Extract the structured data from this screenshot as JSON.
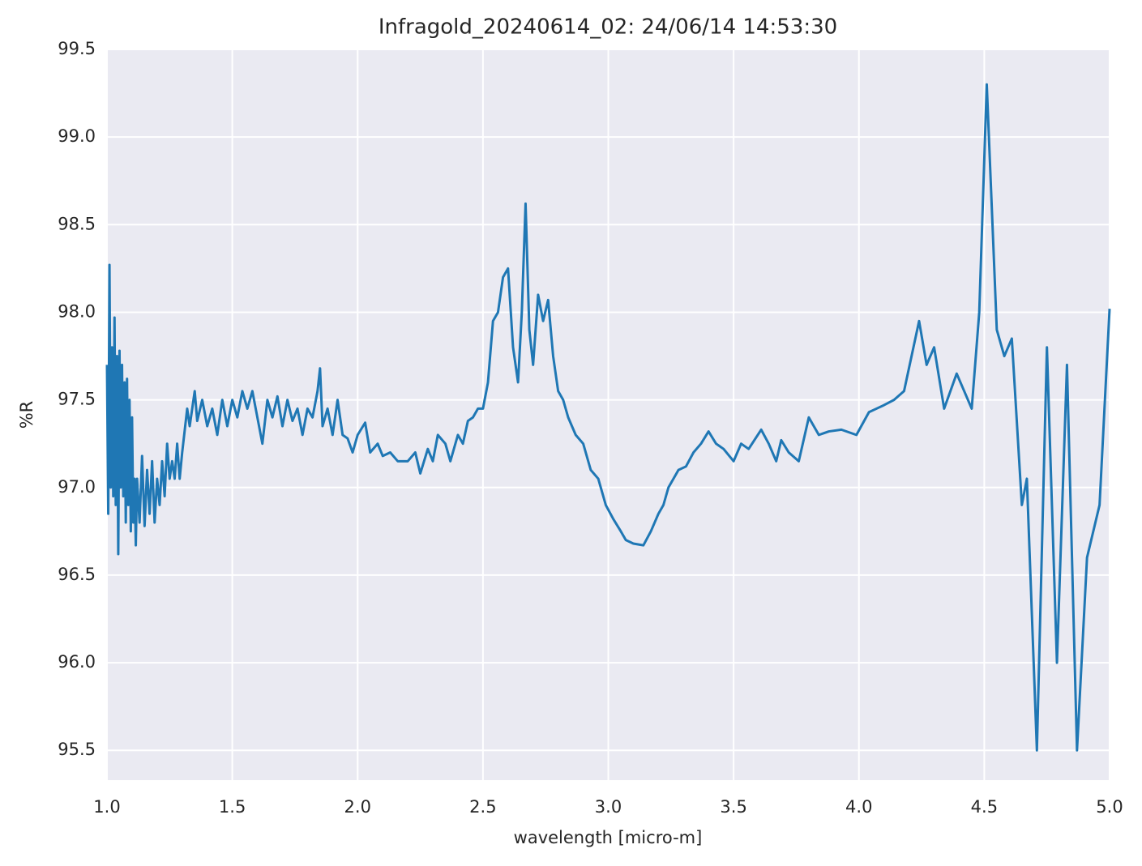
{
  "chart_data": {
    "type": "line",
    "title": "Infragold_20240614_02:  24/06/14 14:53:30",
    "x_label": "wavelength [micro-m]",
    "y_label": "%R",
    "color": "#1f77b4",
    "grid": true,
    "xlim": [
      1.0,
      5.0
    ],
    "ylim": [
      95.33,
      99.5
    ],
    "xticks": [
      {
        "value": 1,
        "label": "1.0"
      },
      1.5,
      {
        "value": 2,
        "label": "2.0"
      },
      2.5,
      {
        "value": 3,
        "label": "3.0"
      },
      3.5,
      {
        "value": 4,
        "label": "4.0"
      },
      4.5,
      {
        "value": 5,
        "label": "5.0"
      }
    ],
    "yticks": [
      95.5,
      {
        "value": 96,
        "label": "96.0"
      },
      96.5,
      {
        "value": 97,
        "label": "97.0"
      },
      97.5,
      {
        "value": 98,
        "label": "98.0"
      },
      98.5,
      {
        "value": 99,
        "label": "99.0"
      },
      99.5
    ],
    "x": [
      1.0,
      1.005,
      1.01,
      1.015,
      1.02,
      1.025,
      1.03,
      1.035,
      1.04,
      1.045,
      1.05,
      1.055,
      1.06,
      1.065,
      1.07,
      1.075,
      1.08,
      1.085,
      1.09,
      1.095,
      1.1,
      1.105,
      1.11,
      1.115,
      1.12,
      1.13,
      1.14,
      1.15,
      1.16,
      1.17,
      1.18,
      1.19,
      1.2,
      1.21,
      1.22,
      1.23,
      1.24,
      1.25,
      1.26,
      1.27,
      1.28,
      1.29,
      1.3,
      1.32,
      1.33,
      1.35,
      1.36,
      1.38,
      1.4,
      1.42,
      1.44,
      1.46,
      1.48,
      1.5,
      1.52,
      1.54,
      1.56,
      1.58,
      1.6,
      1.62,
      1.64,
      1.66,
      1.68,
      1.7,
      1.72,
      1.74,
      1.76,
      1.78,
      1.8,
      1.82,
      1.84,
      1.85,
      1.86,
      1.88,
      1.9,
      1.92,
      1.94,
      1.96,
      1.98,
      2.0,
      2.03,
      2.05,
      2.08,
      2.1,
      2.13,
      2.16,
      2.2,
      2.23,
      2.25,
      2.28,
      2.3,
      2.32,
      2.35,
      2.37,
      2.4,
      2.42,
      2.44,
      2.46,
      2.48,
      2.5,
      2.52,
      2.54,
      2.56,
      2.58,
      2.6,
      2.62,
      2.64,
      2.655,
      2.67,
      2.685,
      2.7,
      2.72,
      2.74,
      2.76,
      2.78,
      2.8,
      2.82,
      2.84,
      2.87,
      2.9,
      2.93,
      2.96,
      2.99,
      3.02,
      3.05,
      3.07,
      3.1,
      3.14,
      3.17,
      3.2,
      3.22,
      3.24,
      3.26,
      3.28,
      3.31,
      3.34,
      3.37,
      3.4,
      3.43,
      3.46,
      3.5,
      3.53,
      3.56,
      3.61,
      3.64,
      3.67,
      3.69,
      3.72,
      3.76,
      3.8,
      3.84,
      3.88,
      3.93,
      3.99,
      4.04,
      4.07,
      4.1,
      4.14,
      4.18,
      4.24,
      4.27,
      4.3,
      4.34,
      4.39,
      4.45,
      4.48,
      4.51,
      4.55,
      4.58,
      4.61,
      4.65,
      4.67,
      4.71,
      4.75,
      4.79,
      4.83,
      4.87,
      4.91,
      4.96,
      5.0
    ],
    "values": [
      97.7,
      96.85,
      98.27,
      97.0,
      97.8,
      96.95,
      97.97,
      96.9,
      97.75,
      96.62,
      97.78,
      97.0,
      97.7,
      96.95,
      97.6,
      96.8,
      97.62,
      96.9,
      97.5,
      96.75,
      97.4,
      96.8,
      97.05,
      96.67,
      97.05,
      96.8,
      97.18,
      96.78,
      97.1,
      96.85,
      97.15,
      96.8,
      97.05,
      96.9,
      97.15,
      96.95,
      97.25,
      97.05,
      97.15,
      97.05,
      97.25,
      97.05,
      97.2,
      97.45,
      97.35,
      97.55,
      97.38,
      97.5,
      97.35,
      97.45,
      97.3,
      97.5,
      97.35,
      97.5,
      97.4,
      97.55,
      97.45,
      97.55,
      97.4,
      97.25,
      97.5,
      97.4,
      97.52,
      97.35,
      97.5,
      97.38,
      97.45,
      97.3,
      97.45,
      97.4,
      97.55,
      97.68,
      97.35,
      97.45,
      97.3,
      97.5,
      97.3,
      97.28,
      97.2,
      97.3,
      97.37,
      97.2,
      97.25,
      97.18,
      97.2,
      97.15,
      97.15,
      97.2,
      97.08,
      97.22,
      97.15,
      97.3,
      97.25,
      97.15,
      97.3,
      97.25,
      97.38,
      97.4,
      97.45,
      97.45,
      97.6,
      97.95,
      98.0,
      98.2,
      98.25,
      97.8,
      97.6,
      98.0,
      98.62,
      97.9,
      97.7,
      98.1,
      97.95,
      98.07,
      97.75,
      97.55,
      97.5,
      97.4,
      97.3,
      97.25,
      97.1,
      97.05,
      96.9,
      96.82,
      96.75,
      96.7,
      96.68,
      96.67,
      96.75,
      96.85,
      96.9,
      97.0,
      97.05,
      97.1,
      97.12,
      97.2,
      97.25,
      97.32,
      97.25,
      97.22,
      97.15,
      97.25,
      97.22,
      97.33,
      97.25,
      97.15,
      97.27,
      97.2,
      97.15,
      97.4,
      97.3,
      97.32,
      97.33,
      97.3,
      97.43,
      97.45,
      97.47,
      97.5,
      97.55,
      97.95,
      97.7,
      97.8,
      97.45,
      97.65,
      97.45,
      98.0,
      99.3,
      97.9,
      97.75,
      97.85,
      96.9,
      97.05,
      95.5,
      97.8,
      96.0,
      97.7,
      95.5,
      96.6,
      96.9,
      98.02
    ]
  }
}
